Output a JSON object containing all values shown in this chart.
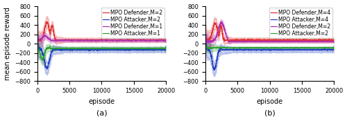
{
  "subplot_a": {
    "title": "(a)",
    "xlabel": "episode",
    "ylabel": "mean episode reward",
    "ylim": [
      -800,
      800
    ],
    "xlim": [
      0,
      20000
    ],
    "yticks": [
      -800,
      -600,
      -400,
      -200,
      0,
      200,
      400,
      600,
      800
    ],
    "xticks": [
      0,
      5000,
      10000,
      15000,
      20000
    ],
    "legend": [
      {
        "label": "MPO Defender,M=2",
        "color": "#e03030"
      },
      {
        "label": "MPO Attacker,M=2",
        "color": "#2040c0"
      },
      {
        "label": "MPO Defender,M=1",
        "color": "#b030b0"
      },
      {
        "label": "MPO Attacker,M=1",
        "color": "#30a030"
      }
    ]
  },
  "subplot_b": {
    "title": "(b)",
    "xlabel": "episode",
    "ylim": [
      -800,
      800
    ],
    "xlim": [
      0,
      20000
    ],
    "yticks": [
      -800,
      -600,
      -400,
      -200,
      0,
      200,
      400,
      600,
      800
    ],
    "xticks": [
      0,
      5000,
      10000,
      15000,
      20000
    ],
    "legend": [
      {
        "label": "MPO Defender,M=4",
        "color": "#e03030"
      },
      {
        "label": "MPO Attacker,M=4",
        "color": "#2040c0"
      },
      {
        "label": "MPO Defender,M=2",
        "color": "#b030b0"
      },
      {
        "label": "MPO Attacker,M=2",
        "color": "#30a030"
      }
    ]
  },
  "bg_color": "#ffffff",
  "font_size_label": 7,
  "font_size_tick": 6,
  "font_size_legend": 5.5,
  "font_size_title": 8,
  "line_width": 0.9,
  "shade_alpha": 0.22
}
